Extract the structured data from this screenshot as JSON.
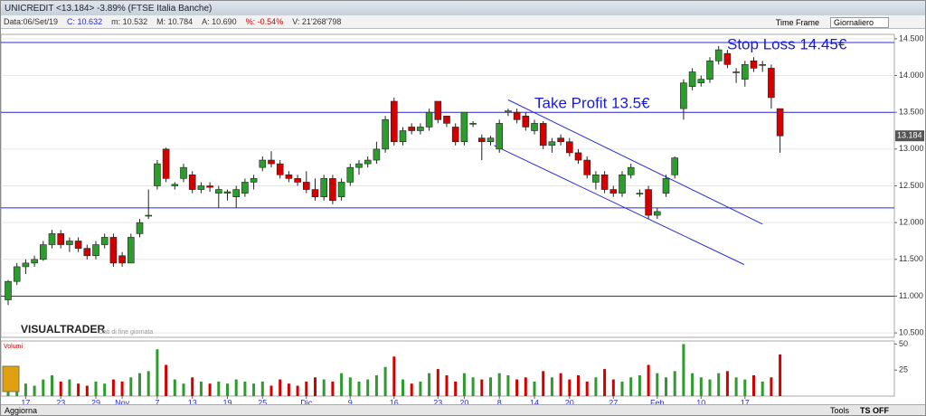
{
  "header": {
    "title": "UNICREDIT <13.184> -3.89% (FTSE Italia Banche)",
    "info": [
      "Data:06/Set/19",
      "C: 10.632",
      "m: 10.532",
      "M: 10.784",
      "A: 10.690",
      "%: -0.54%",
      "V: 21'268'798"
    ],
    "time_frame": "Time Frame",
    "time_frame_value": "Giornaliero"
  },
  "footer": {
    "update": "Aggiorna",
    "tools": "Tools",
    "ts": "TS OFF"
  },
  "chart_data": {
    "type": "candlestick",
    "logo": "VISUALTRADER",
    "logo_note": "Dati di fine giornata",
    "price_label": "13.184",
    "annotations": [
      {
        "text": "Stop Loss 14.45€",
        "y": 14.45
      },
      {
        "text": "Take Profit 13.5€",
        "y": 13.5
      }
    ],
    "hlines": [
      14.45,
      13.5,
      12.2,
      11.0
    ],
    "hline_color": "#2b2bd6",
    "trend_lines": [
      {
        "x": [
          57,
          86
        ],
        "y": [
          13.67,
          11.98
        ]
      },
      {
        "x": [
          55.4,
          83.9
        ],
        "y": [
          13.05,
          11.43
        ]
      }
    ],
    "up_color": "#2e9b2e",
    "down_color": "#d40000",
    "categories": [
      null,
      null,
      "17",
      null,
      null,
      null,
      "23",
      null,
      null,
      null,
      "29",
      null,
      null,
      "Nov",
      null,
      null,
      null,
      "7",
      null,
      null,
      null,
      "13",
      null,
      null,
      null,
      "19",
      null,
      null,
      null,
      "25",
      null,
      null,
      null,
      null,
      "Dic",
      null,
      null,
      null,
      null,
      "9",
      null,
      null,
      null,
      null,
      "16",
      null,
      null,
      null,
      null,
      "23",
      null,
      null,
      "20",
      null,
      null,
      null,
      "8",
      null,
      null,
      null,
      "14",
      null,
      null,
      null,
      "20",
      null,
      null,
      null,
      null,
      "27",
      null,
      null,
      null,
      null,
      "Feb",
      null,
      null,
      null,
      null,
      "10",
      null,
      null,
      null,
      null,
      "17",
      null,
      null,
      null,
      null
    ],
    "open": [
      10.95,
      11.2,
      11.4,
      11.45,
      11.5,
      11.7,
      11.85,
      11.7,
      11.75,
      11.65,
      11.55,
      11.7,
      11.8,
      11.55,
      11.45,
      11.85,
      12.1,
      12.5,
      13.0,
      12.5,
      12.6,
      12.65,
      12.45,
      12.5,
      12.4,
      12.4,
      12.35,
      12.4,
      12.55,
      12.75,
      12.85,
      12.8,
      12.65,
      12.6,
      12.55,
      12.45,
      12.35,
      12.6,
      12.35,
      12.55,
      12.75,
      12.8,
      12.85,
      13.0,
      13.65,
      13.1,
      13.3,
      13.25,
      13.3,
      13.65,
      13.45,
      13.3,
      13.1,
      13.35,
      13.15,
      13.1,
      13.0,
      13.5,
      13.5,
      13.45,
      13.25,
      13.35,
      13.05,
      13.15,
      13.1,
      12.95,
      12.85,
      12.55,
      12.65,
      12.45,
      12.4,
      12.65,
      12.4,
      12.45,
      12.1,
      12.4,
      12.65,
      13.55,
      13.85,
      13.9,
      13.95,
      14.2,
      14.3,
      14.05,
      13.95,
      14.2,
      14.15,
      14.1,
      13.55
    ],
    "high": [
      11.22,
      11.45,
      11.5,
      11.55,
      11.75,
      11.9,
      11.9,
      11.8,
      11.8,
      11.7,
      11.75,
      11.85,
      11.85,
      11.6,
      11.85,
      12.05,
      12.45,
      12.85,
      13.02,
      12.55,
      12.8,
      12.7,
      12.55,
      12.55,
      12.5,
      12.45,
      12.5,
      12.6,
      12.65,
      12.9,
      12.97,
      12.85,
      12.7,
      12.65,
      12.7,
      12.6,
      12.65,
      12.65,
      12.6,
      12.8,
      12.85,
      12.9,
      13.1,
      13.45,
      13.7,
      13.3,
      13.35,
      13.35,
      13.55,
      13.65,
      13.45,
      13.35,
      13.5,
      13.38,
      13.2,
      13.18,
      13.4,
      13.55,
      13.55,
      13.5,
      13.4,
      13.38,
      13.15,
      13.2,
      13.15,
      13.0,
      12.9,
      12.7,
      12.7,
      12.5,
      12.7,
      12.8,
      12.45,
      12.5,
      12.2,
      12.65,
      12.9,
      13.95,
      14.1,
      14.0,
      14.25,
      14.4,
      14.35,
      14.1,
      14.2,
      14.25,
      14.2,
      14.15,
      13.55
    ],
    "low": [
      10.88,
      11.15,
      11.3,
      11.4,
      11.48,
      11.65,
      11.65,
      11.6,
      11.6,
      11.5,
      11.5,
      11.65,
      11.4,
      11.4,
      11.45,
      11.8,
      12.05,
      12.45,
      12.55,
      12.45,
      12.55,
      12.4,
      12.4,
      12.42,
      12.2,
      12.3,
      12.2,
      12.35,
      12.45,
      12.7,
      12.75,
      12.6,
      12.55,
      12.5,
      12.4,
      12.3,
      12.3,
      12.25,
      12.3,
      12.5,
      12.65,
      12.75,
      12.8,
      12.95,
      13.05,
      13.05,
      13.2,
      13.2,
      13.25,
      13.35,
      13.3,
      13.05,
      13.05,
      13.3,
      12.85,
      13.05,
      12.95,
      13.45,
      13.35,
      13.25,
      13.2,
      13.0,
      12.95,
      13.05,
      12.9,
      12.8,
      12.6,
      12.45,
      12.4,
      12.35,
      12.35,
      12.6,
      12.35,
      12.05,
      12.05,
      12.35,
      12.6,
      13.4,
      13.8,
      13.85,
      13.9,
      14.15,
      14.1,
      13.9,
      13.85,
      14.05,
      14.05,
      13.55,
      12.95
    ],
    "close": [
      11.2,
      11.4,
      11.45,
      11.5,
      11.7,
      11.85,
      11.7,
      11.75,
      11.65,
      11.55,
      11.7,
      11.8,
      11.45,
      11.45,
      11.8,
      12.0,
      12.1,
      12.8,
      12.6,
      12.52,
      12.75,
      12.45,
      12.5,
      12.48,
      12.45,
      12.42,
      12.45,
      12.55,
      12.6,
      12.85,
      12.8,
      12.65,
      12.6,
      12.55,
      12.45,
      12.35,
      12.6,
      12.3,
      12.55,
      12.75,
      12.8,
      12.85,
      13.0,
      13.4,
      13.1,
      13.25,
      13.25,
      13.3,
      13.5,
      13.4,
      13.35,
      13.1,
      13.5,
      13.35,
      13.1,
      13.15,
      13.35,
      13.52,
      13.4,
      13.3,
      13.35,
      13.05,
      13.1,
      13.1,
      12.95,
      12.85,
      12.65,
      12.65,
      12.45,
      12.4,
      12.65,
      12.75,
      12.4,
      12.1,
      12.15,
      12.6,
      12.88,
      13.9,
      14.05,
      13.95,
      14.2,
      14.35,
      14.15,
      14.05,
      14.15,
      14.1,
      14.15,
      13.7,
      13.18
    ],
    "ylim": [
      10.44,
      14.56
    ],
    "yticks": [
      {
        "value": 14.5,
        "label": "14.500"
      },
      {
        "value": 14.0,
        "label": "14.000"
      },
      {
        "value": 13.5,
        "label": "13.500"
      },
      {
        "value": 13.0,
        "label": "13.000"
      },
      {
        "value": 12.5,
        "label": "12.500"
      },
      {
        "value": 12.0,
        "label": "12.000"
      },
      {
        "value": 11.5,
        "label": "11.500"
      },
      {
        "value": 11.0,
        "label": "11.000"
      },
      {
        "value": 10.5,
        "label": "10.500"
      }
    ],
    "grid": true,
    "volume": {
      "label": "Volumi",
      "values": [
        18,
        22,
        12,
        10,
        16,
        20,
        14,
        16,
        12,
        10,
        14,
        12,
        16,
        14,
        18,
        22,
        24,
        45,
        30,
        16,
        12,
        18,
        14,
        12,
        14,
        12,
        16,
        14,
        12,
        14,
        10,
        16,
        12,
        10,
        14,
        18,
        16,
        14,
        22,
        18,
        14,
        16,
        20,
        28,
        38,
        16,
        12,
        14,
        22,
        26,
        20,
        14,
        22,
        18,
        16,
        18,
        22,
        20,
        16,
        18,
        14,
        24,
        18,
        22,
        16,
        20,
        14,
        18,
        26,
        16,
        14,
        18,
        20,
        30,
        22,
        18,
        24,
        50,
        22,
        18,
        16,
        22,
        24,
        18,
        16,
        20,
        14,
        18,
        40
      ],
      "ylim": [
        0,
        53
      ],
      "yticks": [
        25,
        50
      ]
    }
  }
}
